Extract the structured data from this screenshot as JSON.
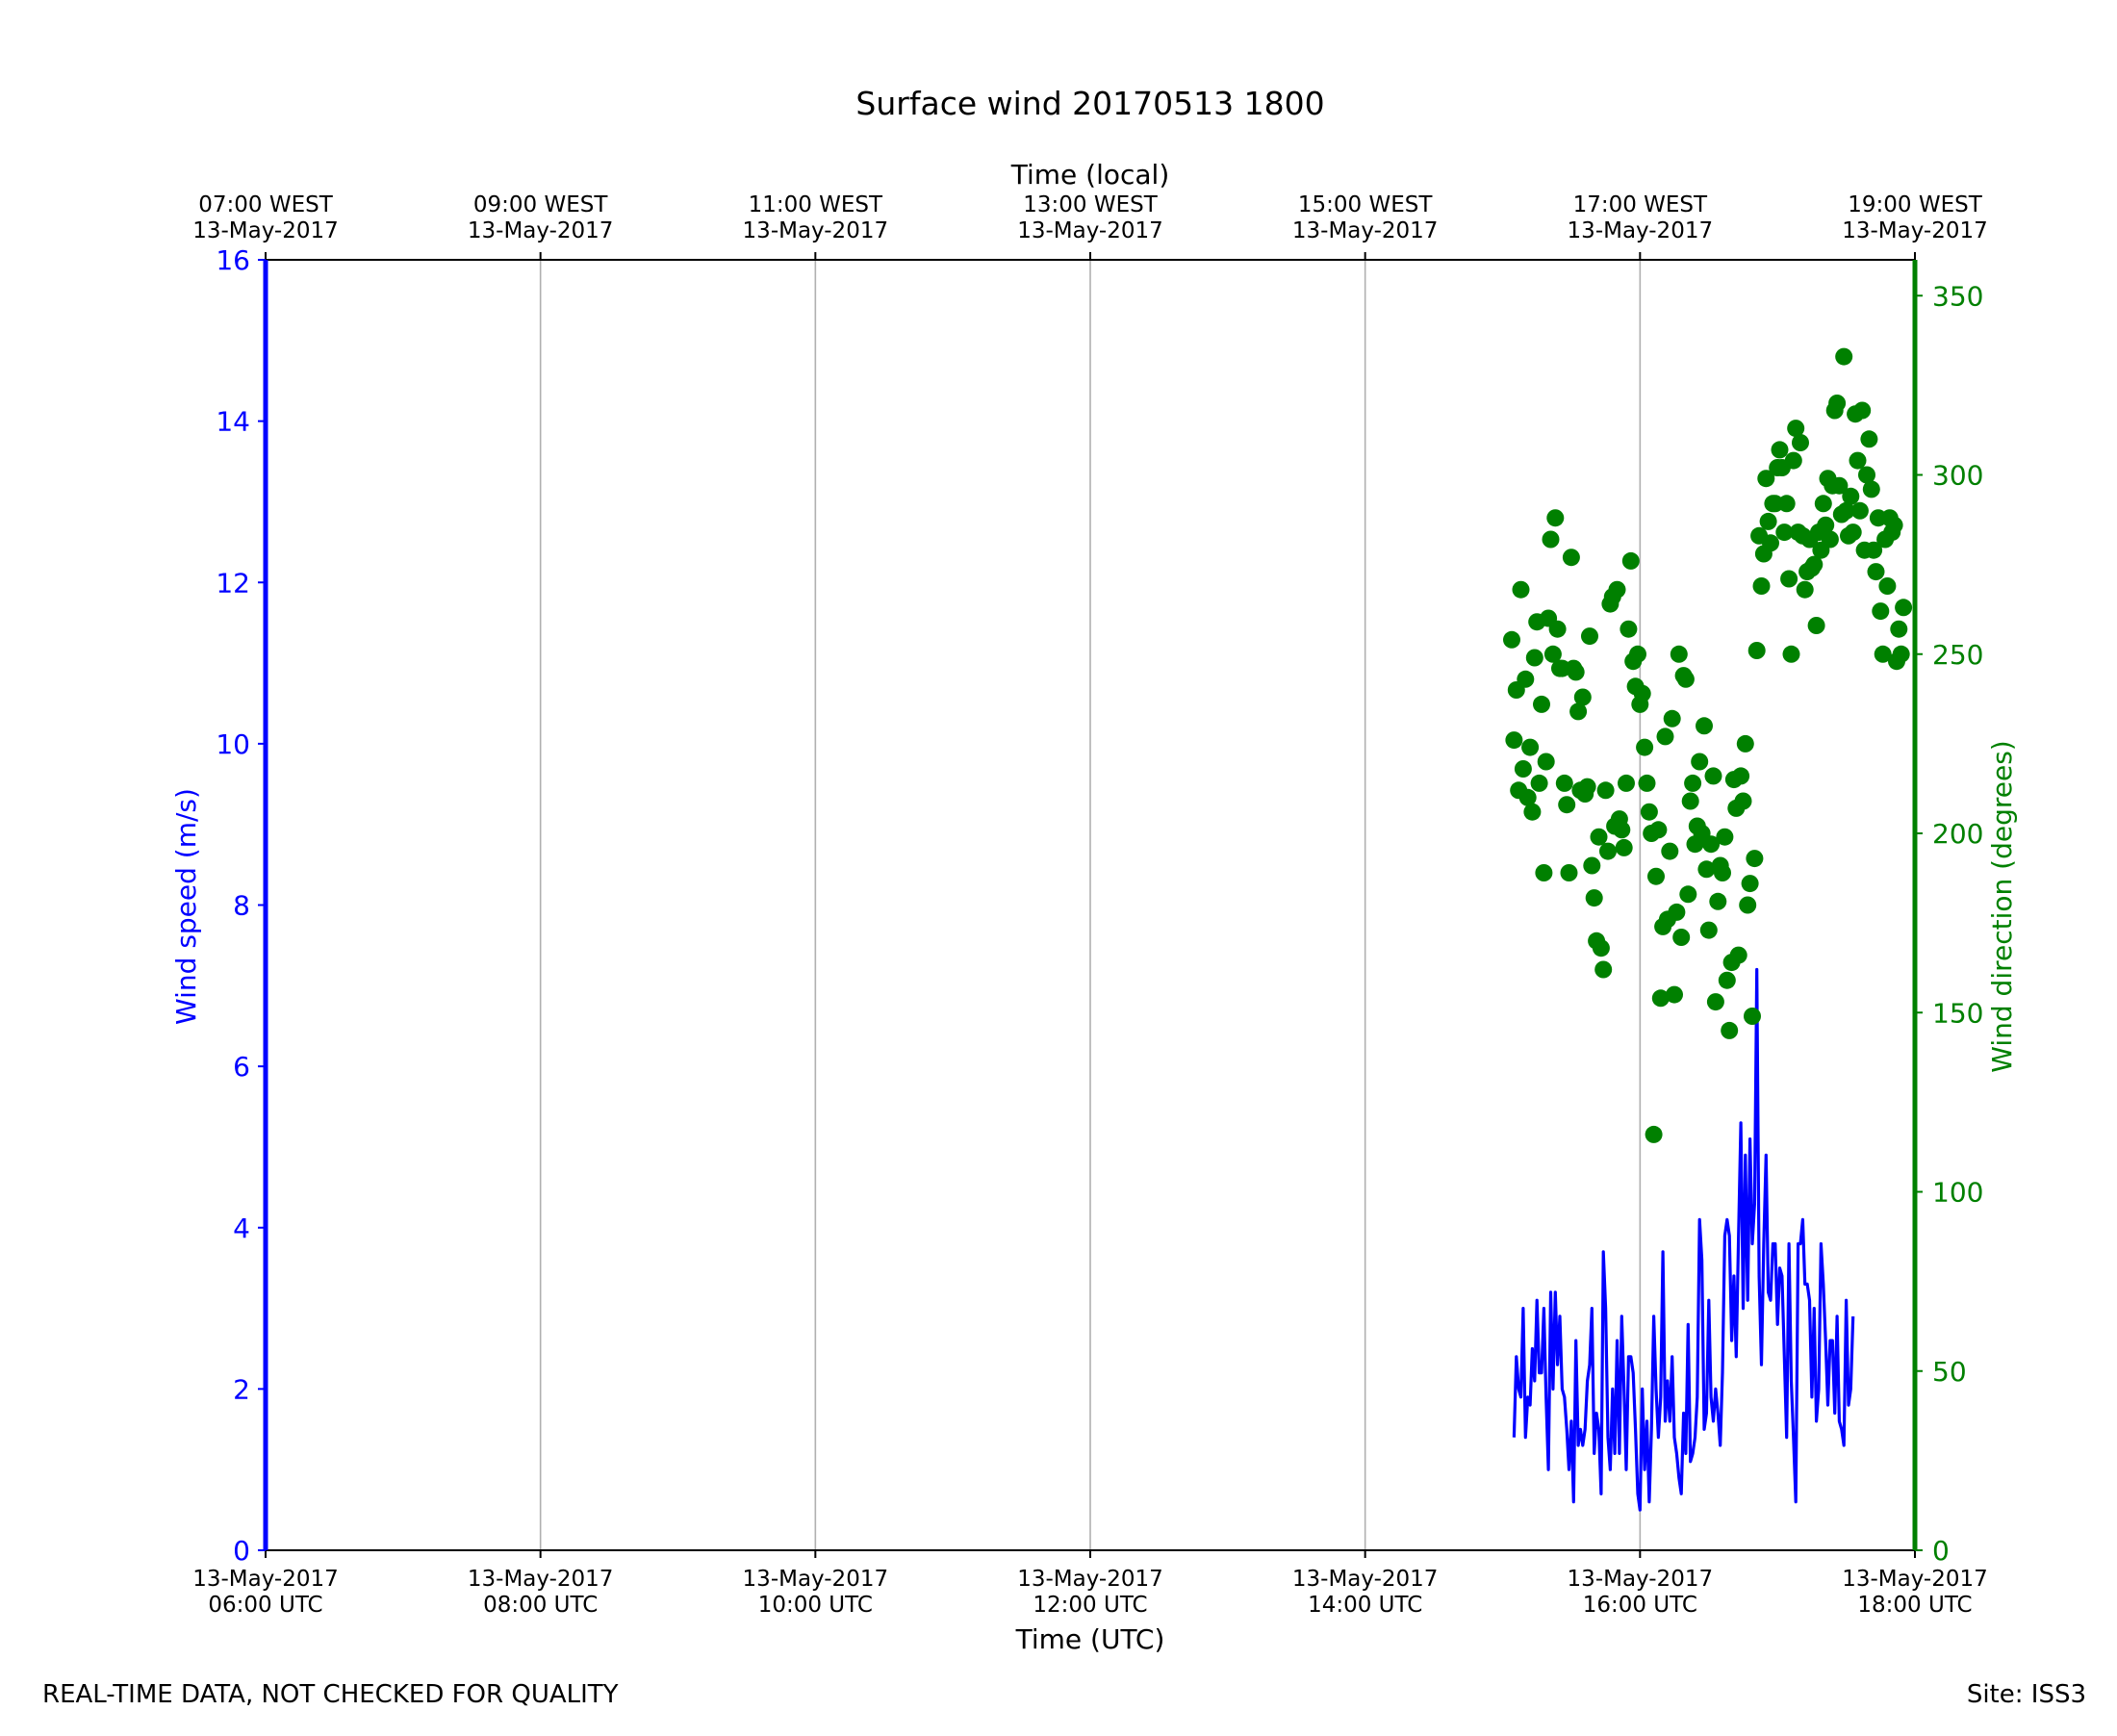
{
  "chart_data": {
    "type": "line",
    "title": "Surface wind 20170513 1800",
    "xlabel": "Time (UTC)",
    "x2label": "Time (local)",
    "ylabel": "Wind speed (m/s)",
    "y2label": "Wind direction (degrees)",
    "xlim": [
      "2017-05-13 06:00",
      "2017-05-13 18:00"
    ],
    "ylim": [
      0,
      16
    ],
    "y2lim": [
      0,
      360
    ],
    "grid": "vertical",
    "colors": {
      "speed": "#0000ff",
      "direction": "#008000",
      "grid": "#b0b0b0",
      "axis": "#000000"
    },
    "x_ticks": [
      {
        "time": "2017-05-13 06:00",
        "date": "13-May-2017",
        "label": "06:00 UTC"
      },
      {
        "time": "2017-05-13 08:00",
        "date": "13-May-2017",
        "label": "08:00 UTC"
      },
      {
        "time": "2017-05-13 10:00",
        "date": "13-May-2017",
        "label": "10:00 UTC"
      },
      {
        "time": "2017-05-13 12:00",
        "date": "13-May-2017",
        "label": "12:00 UTC"
      },
      {
        "time": "2017-05-13 14:00",
        "date": "13-May-2017",
        "label": "14:00 UTC"
      },
      {
        "time": "2017-05-13 16:00",
        "date": "13-May-2017",
        "label": "16:00 UTC"
      },
      {
        "time": "2017-05-13 18:00",
        "date": "13-May-2017",
        "label": "18:00 UTC"
      }
    ],
    "x2_ticks": [
      {
        "time": "2017-05-13 06:00",
        "label": "07:00 WEST",
        "date": "13-May-2017"
      },
      {
        "time": "2017-05-13 08:00",
        "label": "09:00 WEST",
        "date": "13-May-2017"
      },
      {
        "time": "2017-05-13 10:00",
        "label": "11:00 WEST",
        "date": "13-May-2017"
      },
      {
        "time": "2017-05-13 12:00",
        "label": "13:00 WEST",
        "date": "13-May-2017"
      },
      {
        "time": "2017-05-13 14:00",
        "label": "15:00 WEST",
        "date": "13-May-2017"
      },
      {
        "time": "2017-05-13 16:00",
        "label": "17:00 WEST",
        "date": "13-May-2017"
      },
      {
        "time": "2017-05-13 18:00",
        "label": "19:00 WEST",
        "date": "13-May-2017"
      }
    ],
    "y_ticks": [
      0,
      2,
      4,
      6,
      8,
      10,
      12,
      14,
      16
    ],
    "y2_ticks": [
      0,
      50,
      100,
      150,
      200,
      250,
      300,
      350
    ],
    "series": [
      {
        "type": "line",
        "axis": "left",
        "sample_interval_minutes": 1,
        "x_start": "2017-05-13 15:05",
        "values": [
          1.4,
          2.4,
          2.0,
          1.9,
          3.0,
          1.4,
          1.9,
          1.8,
          2.5,
          2.1,
          3.1,
          2.2,
          2.2,
          3.0,
          1.9,
          1.0,
          3.2,
          2.0,
          3.2,
          2.3,
          2.9,
          2.0,
          1.9,
          1.5,
          1.0,
          1.6,
          0.6,
          2.6,
          1.3,
          1.5,
          1.3,
          1.5,
          2.1,
          2.3,
          3.0,
          1.2,
          1.7,
          1.5,
          0.7,
          3.7,
          3.0,
          1.4,
          1.0,
          2.0,
          1.2,
          2.6,
          1.2,
          2.9,
          2.0,
          1.0,
          2.4,
          2.4,
          2.2,
          1.5,
          0.7,
          0.5,
          2.0,
          1.0,
          1.6,
          0.6,
          1.5,
          2.9,
          2.0,
          1.4,
          1.9,
          3.7,
          1.6,
          2.1,
          1.6,
          2.4,
          1.4,
          1.2,
          0.9,
          0.7,
          1.7,
          1.2,
          2.8,
          1.1,
          1.2,
          1.4,
          1.9,
          4.1,
          3.6,
          1.5,
          1.7,
          3.1,
          1.9,
          1.6,
          2.0,
          1.7,
          1.3,
          2.2,
          3.9,
          4.1,
          3.9,
          2.6,
          3.4,
          2.4,
          3.9,
          5.3,
          3.0,
          4.9,
          3.1,
          5.1,
          3.8,
          4.3,
          7.2,
          3.4,
          2.3,
          3.8,
          4.9,
          3.2,
          3.1,
          3.8,
          3.8,
          2.8,
          3.5,
          3.4,
          2.4,
          1.4,
          3.8,
          2.1,
          1.4,
          0.6,
          3.8,
          3.8,
          4.1,
          3.3,
          3.3,
          3.1,
          1.9,
          3.0,
          1.6,
          2.0,
          3.8,
          3.3,
          2.6,
          1.8,
          2.6,
          2.6,
          1.7,
          2.9,
          1.6,
          1.5,
          1.3,
          3.1,
          1.8,
          2.0,
          2.9
        ]
      },
      {
        "type": "scatter",
        "axis": "right",
        "points": [
          [
            "15:04",
            254
          ],
          [
            "15:05",
            226
          ],
          [
            "15:06",
            240
          ],
          [
            "15:07",
            212
          ],
          [
            "15:08",
            268
          ],
          [
            "15:09",
            218
          ],
          [
            "15:10",
            243
          ],
          [
            "15:11",
            210
          ],
          [
            "15:12",
            224
          ],
          [
            "15:13",
            206
          ],
          [
            "15:14",
            249
          ],
          [
            "15:15",
            259
          ],
          [
            "15:16",
            214
          ],
          [
            "15:17",
            236
          ],
          [
            "15:18",
            189
          ],
          [
            "15:19",
            220
          ],
          [
            "15:20",
            260
          ],
          [
            "15:21",
            282
          ],
          [
            "15:22",
            250
          ],
          [
            "15:23",
            288
          ],
          [
            "15:24",
            257
          ],
          [
            "15:25",
            246
          ],
          [
            "15:26",
            246
          ],
          [
            "15:27",
            214
          ],
          [
            "15:28",
            208
          ],
          [
            "15:29",
            189
          ],
          [
            "15:30",
            277
          ],
          [
            "15:31",
            246
          ],
          [
            "15:32",
            245
          ],
          [
            "15:33",
            234
          ],
          [
            "15:34",
            212
          ],
          [
            "15:35",
            238
          ],
          [
            "15:36",
            211
          ],
          [
            "15:37",
            213
          ],
          [
            "15:38",
            255
          ],
          [
            "15:39",
            191
          ],
          [
            "15:40",
            182
          ],
          [
            "15:41",
            170
          ],
          [
            "15:42",
            199
          ],
          [
            "15:43",
            168
          ],
          [
            "15:44",
            162
          ],
          [
            "15:45",
            212
          ],
          [
            "15:46",
            195
          ],
          [
            "15:47",
            264
          ],
          [
            "15:48",
            266
          ],
          [
            "15:49",
            202
          ],
          [
            "15:50",
            268
          ],
          [
            "15:51",
            204
          ],
          [
            "15:52",
            201
          ],
          [
            "15:53",
            196
          ],
          [
            "15:54",
            214
          ],
          [
            "15:55",
            257
          ],
          [
            "15:56",
            276
          ],
          [
            "15:57",
            248
          ],
          [
            "15:58",
            241
          ],
          [
            "15:59",
            250
          ],
          [
            "16:00",
            236
          ],
          [
            "16:01",
            239
          ],
          [
            "16:02",
            224
          ],
          [
            "16:03",
            214
          ],
          [
            "16:04",
            206
          ],
          [
            "16:05",
            200
          ],
          [
            "16:06",
            116
          ],
          [
            "16:07",
            188
          ],
          [
            "16:08",
            201
          ],
          [
            "16:09",
            154
          ],
          [
            "16:10",
            174
          ],
          [
            "16:11",
            227
          ],
          [
            "16:12",
            176
          ],
          [
            "16:13",
            195
          ],
          [
            "16:14",
            232
          ],
          [
            "16:15",
            155
          ],
          [
            "16:16",
            178
          ],
          [
            "16:17",
            250
          ],
          [
            "16:18",
            171
          ],
          [
            "16:19",
            244
          ],
          [
            "16:20",
            243
          ],
          [
            "16:21",
            183
          ],
          [
            "16:22",
            209
          ],
          [
            "16:23",
            214
          ],
          [
            "16:24",
            197
          ],
          [
            "16:25",
            202
          ],
          [
            "16:26",
            220
          ],
          [
            "16:27",
            200
          ],
          [
            "16:28",
            230
          ],
          [
            "16:29",
            190
          ],
          [
            "16:30",
            173
          ],
          [
            "16:31",
            197
          ],
          [
            "16:32",
            216
          ],
          [
            "16:33",
            153
          ],
          [
            "16:34",
            181
          ],
          [
            "16:35",
            191
          ],
          [
            "16:36",
            189
          ],
          [
            "16:37",
            199
          ],
          [
            "16:38",
            159
          ],
          [
            "16:39",
            145
          ],
          [
            "16:40",
            164
          ],
          [
            "16:41",
            215
          ],
          [
            "16:42",
            207
          ],
          [
            "16:43",
            166
          ],
          [
            "16:44",
            216
          ],
          [
            "16:45",
            209
          ],
          [
            "16:46",
            225
          ],
          [
            "16:47",
            180
          ],
          [
            "16:48",
            186
          ],
          [
            "16:49",
            149
          ],
          [
            "16:50",
            193
          ],
          [
            "16:51",
            251
          ],
          [
            "16:52",
            283
          ],
          [
            "16:53",
            269
          ],
          [
            "16:54",
            278
          ],
          [
            "16:55",
            299
          ],
          [
            "16:56",
            287
          ],
          [
            "16:57",
            281
          ],
          [
            "16:58",
            292
          ],
          [
            "16:59",
            292
          ],
          [
            "17:00",
            302
          ],
          [
            "17:01",
            307
          ],
          [
            "17:02",
            302
          ],
          [
            "17:03",
            284
          ],
          [
            "17:04",
            292
          ],
          [
            "17:05",
            271
          ],
          [
            "17:06",
            250
          ],
          [
            "17:07",
            304
          ],
          [
            "17:08",
            313
          ],
          [
            "17:09",
            284
          ],
          [
            "17:10",
            309
          ],
          [
            "17:11",
            283
          ],
          [
            "17:12",
            268
          ],
          [
            "17:13",
            273
          ],
          [
            "17:14",
            282
          ],
          [
            "17:15",
            274
          ],
          [
            "17:16",
            275
          ],
          [
            "17:17",
            258
          ],
          [
            "17:18",
            284
          ],
          [
            "17:19",
            279
          ],
          [
            "17:20",
            292
          ],
          [
            "17:21",
            286
          ],
          [
            "17:22",
            299
          ],
          [
            "17:23",
            282
          ],
          [
            "17:24",
            297
          ],
          [
            "17:25",
            318
          ],
          [
            "17:26",
            320
          ],
          [
            "17:27",
            297
          ],
          [
            "17:28",
            289
          ],
          [
            "17:29",
            333
          ],
          [
            "17:30",
            290
          ],
          [
            "17:31",
            283
          ],
          [
            "17:32",
            294
          ],
          [
            "17:33",
            284
          ],
          [
            "17:34",
            317
          ],
          [
            "17:35",
            304
          ],
          [
            "17:36",
            290
          ],
          [
            "17:37",
            318
          ],
          [
            "17:38",
            279
          ],
          [
            "17:39",
            300
          ],
          [
            "17:40",
            310
          ],
          [
            "17:41",
            296
          ],
          [
            "17:42",
            279
          ],
          [
            "17:43",
            273
          ],
          [
            "17:44",
            288
          ],
          [
            "17:45",
            262
          ],
          [
            "17:46",
            250
          ],
          [
            "17:47",
            282
          ],
          [
            "17:48",
            269
          ],
          [
            "17:49",
            288
          ],
          [
            "17:50",
            284
          ],
          [
            "17:51",
            286
          ],
          [
            "17:52",
            248
          ],
          [
            "17:53",
            257
          ],
          [
            "17:54",
            250
          ],
          [
            "17:55",
            263
          ]
        ]
      }
    ]
  },
  "footer": {
    "left": "REAL-TIME DATA, NOT CHECKED FOR QUALITY",
    "right": "Site: ISS3"
  }
}
